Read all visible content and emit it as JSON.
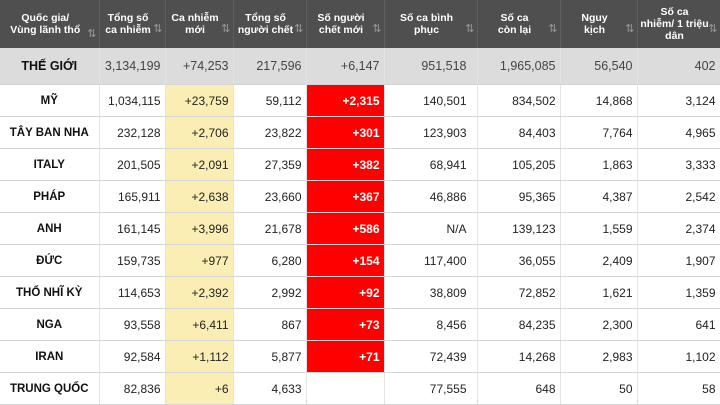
{
  "headers": [
    {
      "label": "Quốc gia/\nVùng lãnh thổ"
    },
    {
      "label": "Tổng số\nca nhiễm"
    },
    {
      "label": "Ca nhiễm\nmới"
    },
    {
      "label": "Tổng số\nngười chết"
    },
    {
      "label": "Số người\nchết mới"
    },
    {
      "label": "Số ca bình\nphục"
    },
    {
      "label": "Số ca\ncòn lại"
    },
    {
      "label": "Nguy\nkịch"
    },
    {
      "label": "Số ca\nnhiễm/ 1 triệu\ndân"
    }
  ],
  "sort_glyph": "⇅",
  "rows": [
    {
      "country": "THẾ GIỚI",
      "total": "3,134,199",
      "new_cases": "+74,253",
      "deaths": "217,596",
      "new_deaths": "+6,147",
      "recovered": "951,518",
      "active": "1,965,085",
      "critical": "56,540",
      "per_million": "402"
    },
    {
      "country": "MỸ",
      "total": "1,034,115",
      "new_cases": "+23,759",
      "deaths": "59,112",
      "new_deaths": "+2,315",
      "recovered": "140,501",
      "active": "834,502",
      "critical": "14,868",
      "per_million": "3,124"
    },
    {
      "country": "TÂY BAN NHA",
      "total": "232,128",
      "new_cases": "+2,706",
      "deaths": "23,822",
      "new_deaths": "+301",
      "recovered": "123,903",
      "active": "84,403",
      "critical": "7,764",
      "per_million": "4,965"
    },
    {
      "country": "ITALY",
      "total": "201,505",
      "new_cases": "+2,091",
      "deaths": "27,359",
      "new_deaths": "+382",
      "recovered": "68,941",
      "active": "105,205",
      "critical": "1,863",
      "per_million": "3,333"
    },
    {
      "country": "PHÁP",
      "total": "165,911",
      "new_cases": "+2,638",
      "deaths": "23,660",
      "new_deaths": "+367",
      "recovered": "46,886",
      "active": "95,365",
      "critical": "4,387",
      "per_million": "2,542"
    },
    {
      "country": "ANH",
      "total": "161,145",
      "new_cases": "+3,996",
      "deaths": "21,678",
      "new_deaths": "+586",
      "recovered": "N/A",
      "active": "139,123",
      "critical": "1,559",
      "per_million": "2,374"
    },
    {
      "country": "ĐỨC",
      "total": "159,735",
      "new_cases": "+977",
      "deaths": "6,280",
      "new_deaths": "+154",
      "recovered": "117,400",
      "active": "36,055",
      "critical": "2,409",
      "per_million": "1,907"
    },
    {
      "country": "THỔ NHĨ KỲ",
      "total": "114,653",
      "new_cases": "+2,392",
      "deaths": "2,992",
      "new_deaths": "+92",
      "recovered": "38,809",
      "active": "72,852",
      "critical": "1,621",
      "per_million": "1,359"
    },
    {
      "country": "NGA",
      "total": "93,558",
      "new_cases": "+6,411",
      "deaths": "867",
      "new_deaths": "+73",
      "recovered": "8,456",
      "active": "84,235",
      "critical": "2,300",
      "per_million": "641"
    },
    {
      "country": "IRAN",
      "total": "92,584",
      "new_cases": "+1,112",
      "deaths": "5,877",
      "new_deaths": "+71",
      "recovered": "72,439",
      "active": "14,268",
      "critical": "2,983",
      "per_million": "1,102"
    },
    {
      "country": "TRUNG QUỐC",
      "total": "82,836",
      "new_cases": "+6",
      "deaths": "4,633",
      "new_deaths": "",
      "recovered": "77,555",
      "active": "648",
      "critical": "50",
      "per_million": "58"
    }
  ]
}
